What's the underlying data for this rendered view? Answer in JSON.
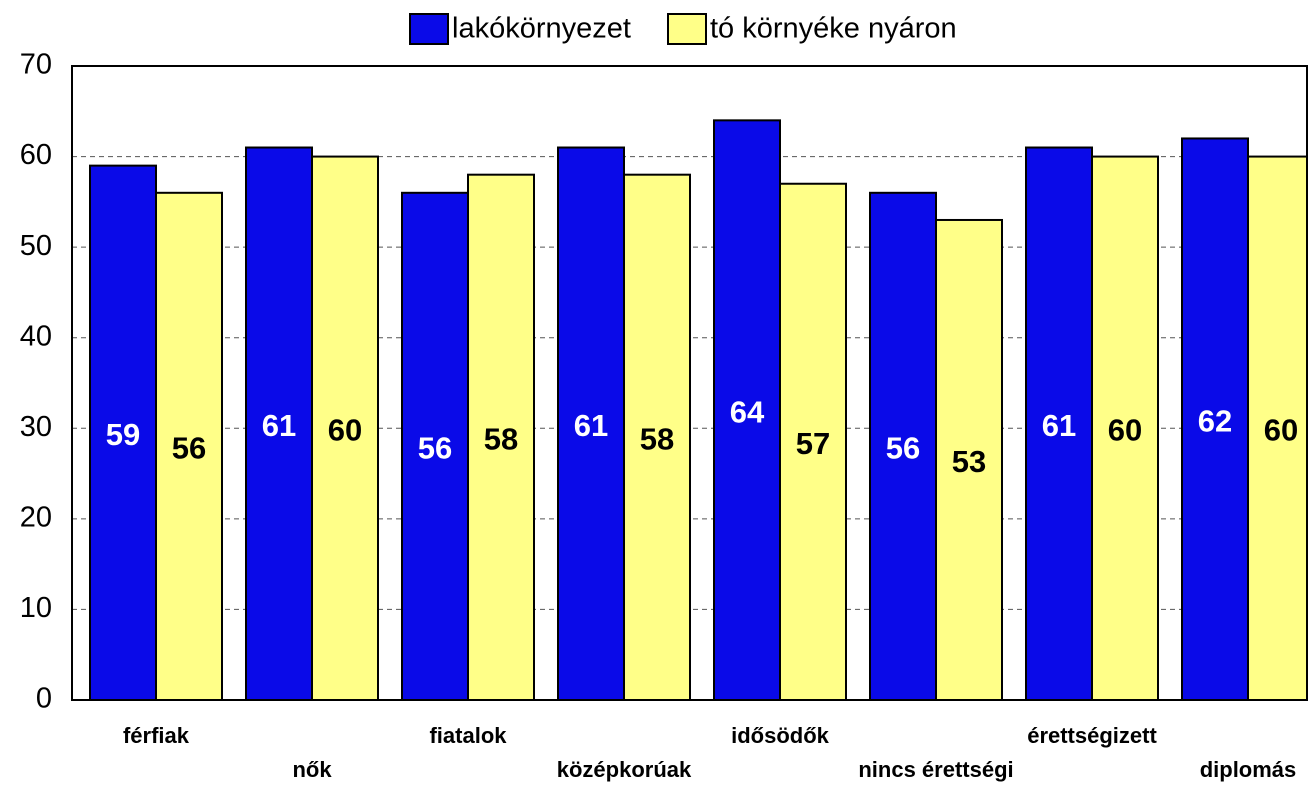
{
  "chart_data": {
    "type": "bar",
    "categories": [
      "férfiak",
      "nők",
      "fiatalok",
      "középkorúak",
      "idősödők",
      "nincs érettségi",
      "érettségizett",
      "diplomás"
    ],
    "series": [
      {
        "name": "lakókörnyezet",
        "color": "#0a0ae8",
        "values": [
          59,
          61,
          56,
          61,
          64,
          56,
          61,
          62
        ]
      },
      {
        "name": "tó környéke nyáron",
        "color": "#ffff88",
        "values": [
          56,
          60,
          58,
          58,
          57,
          53,
          60,
          60
        ]
      }
    ],
    "ylim": [
      0,
      70
    ],
    "yticks": [
      0,
      10,
      20,
      30,
      40,
      50,
      60,
      70
    ],
    "grid": true
  }
}
